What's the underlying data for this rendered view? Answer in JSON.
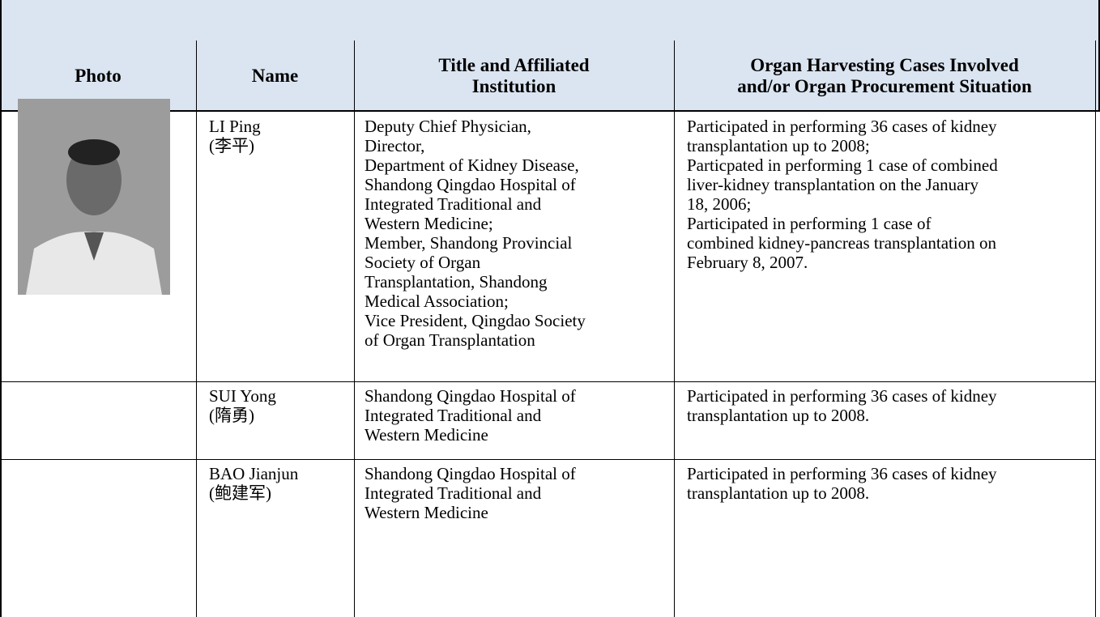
{
  "table": {
    "headers": [
      "Photo",
      "Name",
      [
        "Title and Affiliated",
        "Institution"
      ],
      [
        "Organ Harvesting Cases Involved",
        "and/or Organ Procurement Situation"
      ]
    ],
    "rows": [
      {
        "name": [
          "LI Ping",
          "(李平)"
        ],
        "title": [
          "Deputy Chief Physician,",
          "Director,",
          "Department of Kidney Disease,",
          "Shandong Qingdao Hospital of",
          "Integrated Traditional and",
          "Western Medicine;",
          "Member, Shandong Provincial",
          "Society of Organ",
          "Transplantation, Shandong",
          "Medical Association;",
          "Vice President, Qingdao Society",
          "of Organ Transplantation"
        ],
        "cases": [
          "Participated in performing 36 cases of kidney",
          "transplantation up to 2008;",
          "Particpated in performing 1 case of combined",
          "liver-kidney transplantation on the January",
          "18, 2006;",
          "Participated in performing 1 case of",
          "combined kidney-pancreas transplantation on",
          "February 8, 2007."
        ]
      },
      {
        "name": [
          "SUI Yong",
          "(隋勇)"
        ],
        "title": [
          "Shandong Qingdao Hospital of",
          "Integrated Traditional and",
          "Western Medicine"
        ],
        "cases": [
          "Participated in performing 36 cases of kidney",
          "transplantation up to 2008."
        ]
      },
      {
        "name": [
          "BAO Jianjun",
          "(鲍建军)"
        ],
        "title": [
          "Shandong Qingdao Hospital of",
          "Integrated Traditional and",
          "Western Medicine"
        ],
        "cases": [
          "Participated in performing 36 cases of kidney",
          "transplantation up to 2008."
        ]
      }
    ]
  }
}
